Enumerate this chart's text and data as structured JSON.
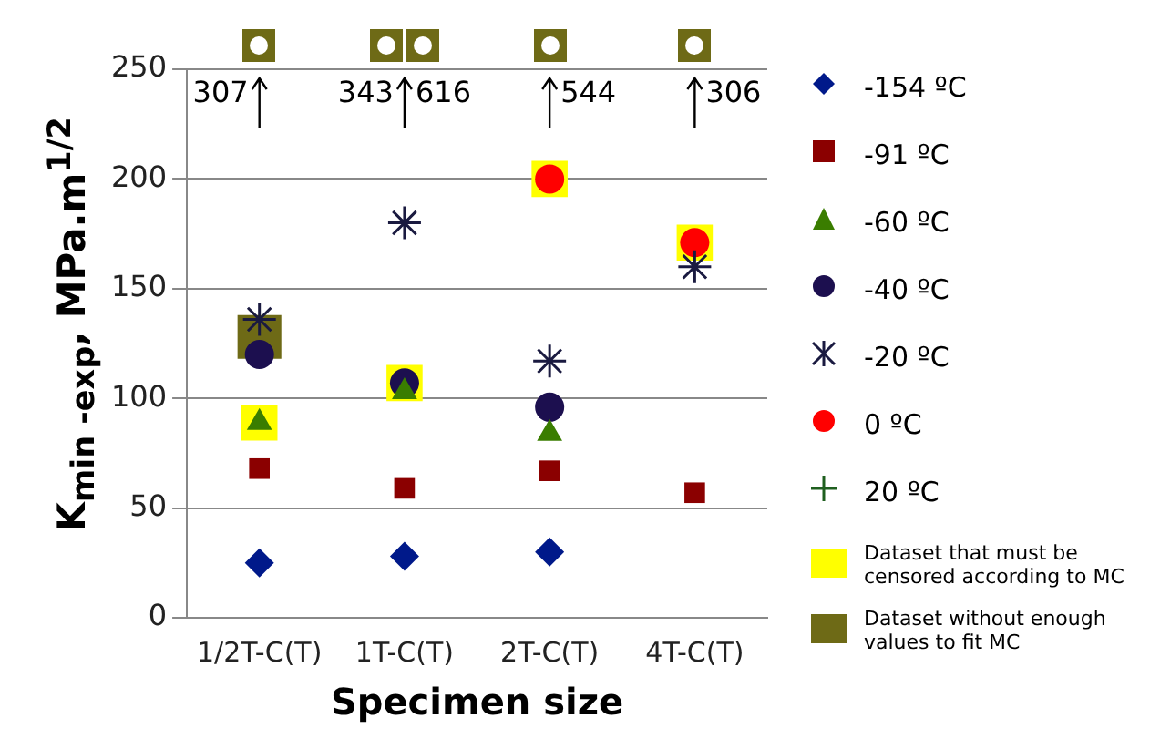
{
  "chart_data": {
    "type": "scatter",
    "xlabel": "Specimen size",
    "ylabel": "K$_{min -exp}$, MPa.m$^{1/2}$",
    "categories": [
      "1/2T-C(T)",
      "1T-C(T)",
      "2T-C(T)",
      "4T-C(T)"
    ],
    "series": [
      {
        "name": "-154 ºC",
        "color": "#00198a",
        "marker": "diamond",
        "values": [
          25,
          28,
          30,
          null
        ]
      },
      {
        "name": "-91 ºC",
        "color": "#8b0000",
        "marker": "square",
        "values": [
          68,
          59,
          67,
          57
        ]
      },
      {
        "name": "-60 ºC",
        "color": "#3a7d00",
        "marker": "triangle",
        "values": [
          89,
          103,
          84,
          null
        ]
      },
      {
        "name": "-40 ºC",
        "color": "#1c0f4f",
        "marker": "circle",
        "values": [
          120,
          107,
          96,
          null
        ]
      },
      {
        "name": "-20 ºC",
        "color": "#1a1a40",
        "values": [
          136,
          180,
          117,
          160
        ]
      },
      {
        "name": "0 ºC",
        "color": "#ff0000",
        "marker": "circle",
        "values": [
          null,
          null,
          200,
          171
        ]
      },
      {
        "name": "20 ºC",
        "color": "#1f5f1f",
        "marker": "cross",
        "values": [
          null,
          null,
          null,
          null
        ]
      },
      {
        "name": "Dataset that must be censored according to MC",
        "color": "#ffff00",
        "marker": "square",
        "values": [
          89,
          107,
          200,
          171
        ]
      },
      {
        "name": "Dataset without enough values to fit MC",
        "color": "#6e6a16",
        "marker": "square",
        "values": [
          128,
          null,
          null,
          null
        ]
      }
    ],
    "annotations": [
      "307",
      "343",
      "616",
      "544",
      "306"
    ],
    "ylim": [
      0,
      250
    ],
    "yticks": [
      0,
      50,
      100,
      150,
      200,
      250
    ],
    "grid": "y",
    "legend": "right"
  }
}
